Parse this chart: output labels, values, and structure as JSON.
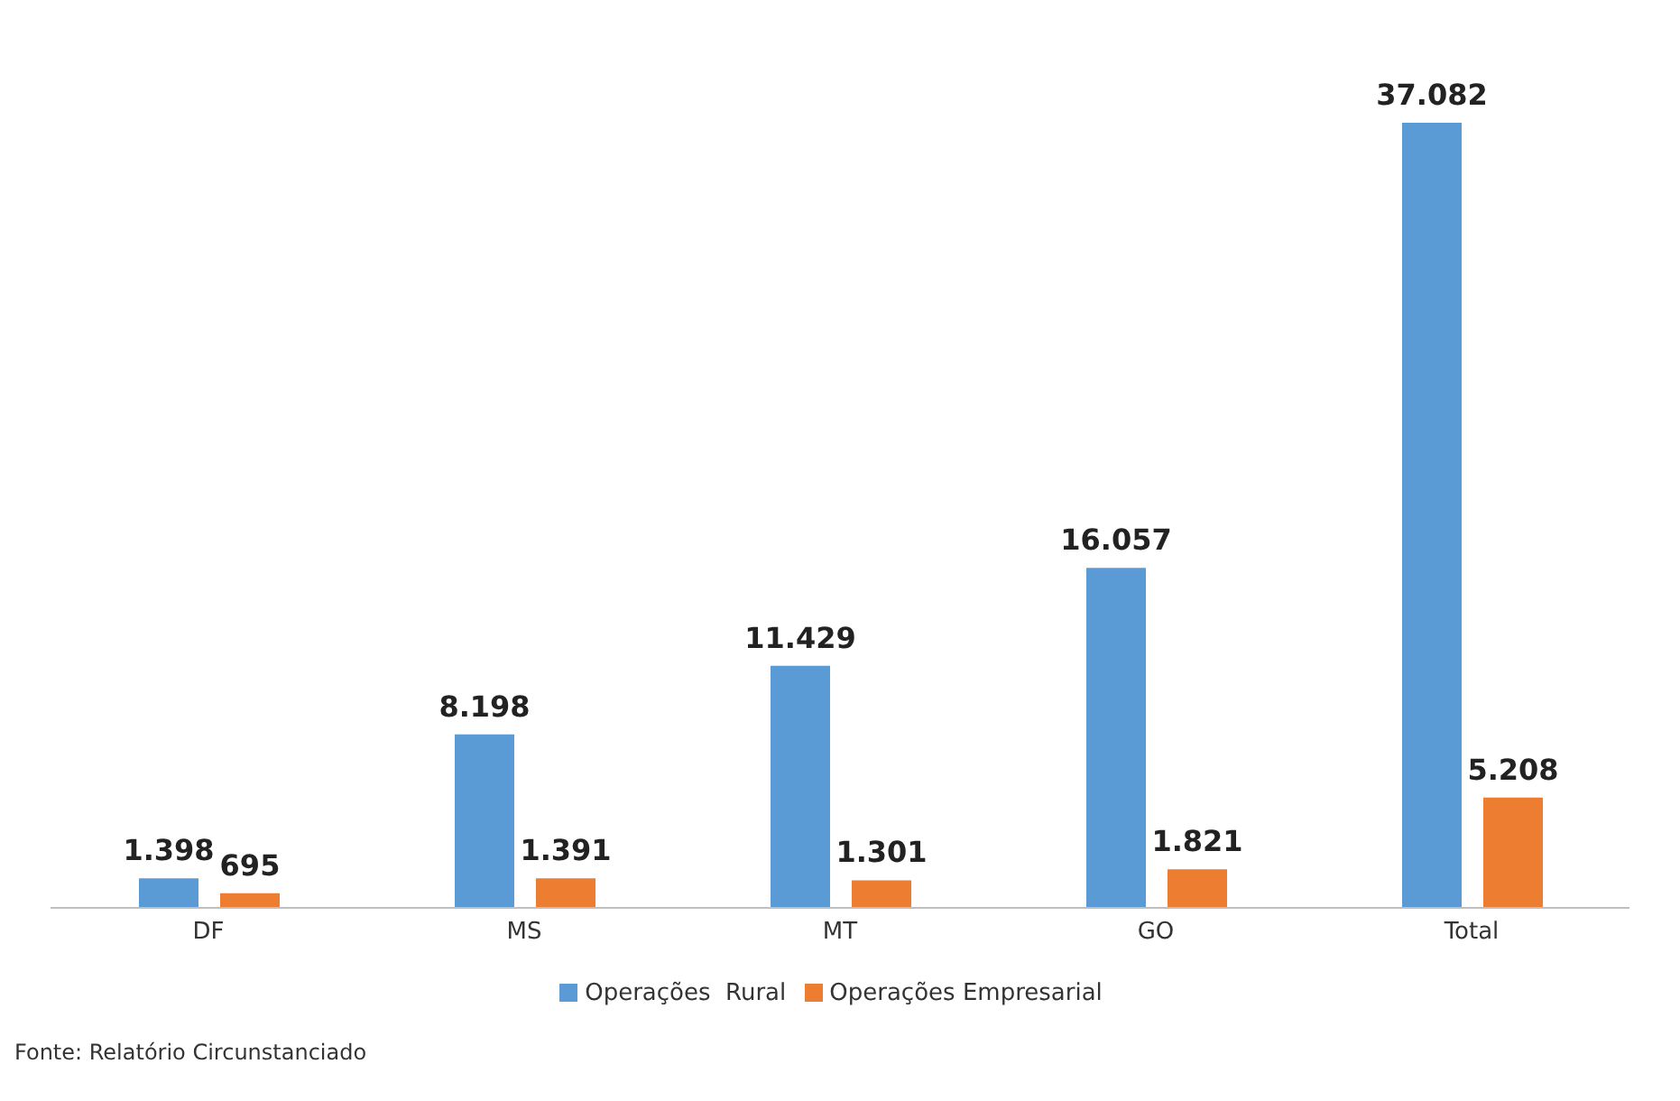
{
  "chart_data": {
    "type": "bar",
    "categories": [
      "DF",
      "MS",
      "MT",
      "GO",
      "Total"
    ],
    "series": [
      {
        "name": "Operações  Rural",
        "color": "#5b9bd5",
        "values": [
          1398,
          8198,
          11429,
          16057,
          37082
        ],
        "value_labels": [
          "1.398",
          "8.198",
          "11.429",
          "16.057",
          "37.082"
        ]
      },
      {
        "name": "Operações Empresarial",
        "color": "#ed7d31",
        "values": [
          695,
          1391,
          1301,
          1821,
          5208
        ],
        "value_labels": [
          "695",
          "1.391",
          "1.301",
          "1.821",
          "5.208"
        ]
      }
    ],
    "legend": "bottom",
    "annotations": [
      "Fonte: Relatório Circunstanciado"
    ]
  }
}
